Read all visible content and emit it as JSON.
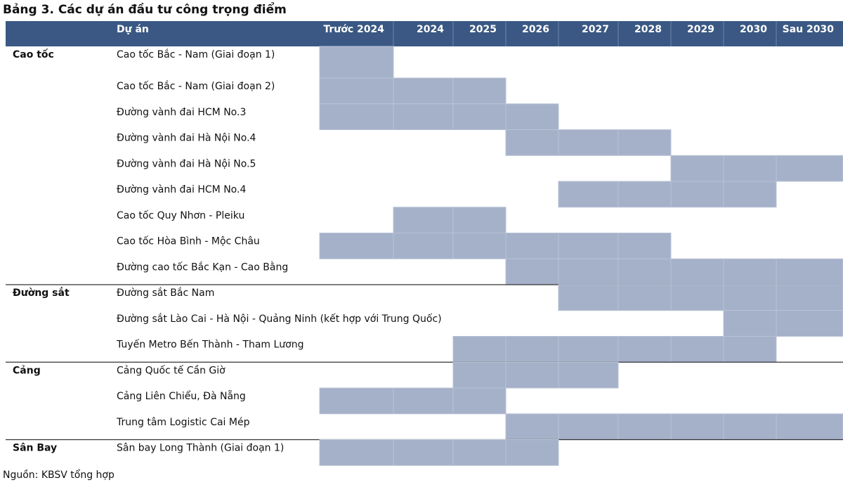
{
  "header": {
    "title": "Bảng 3. Các dự án đầu tư công trọng điểm"
  },
  "table": {
    "columns": [
      "Dự án",
      "Trước 2024",
      "2024",
      "2025",
      "2026",
      "2027",
      "2028",
      "2029",
      "2030",
      "Sau 2030"
    ],
    "groups": [
      {
        "name": "Cao tốc",
        "rows": [
          {
            "name": "Cao tốc Bắc - Nam (Giai đoạn 1)",
            "cells": [
              true,
              false,
              false,
              false,
              false,
              false,
              false,
              false,
              false
            ]
          },
          {
            "name": "Cao tốc Bắc - Nam (Giai đoạn 2)",
            "cells": [
              true,
              true,
              true,
              false,
              false,
              false,
              false,
              false,
              false
            ]
          },
          {
            "name": "Đường vành đai HCM No.3",
            "cells": [
              true,
              true,
              true,
              true,
              false,
              false,
              false,
              false,
              false
            ]
          },
          {
            "name": "Đường vành đai Hà Nội No.4",
            "cells": [
              false,
              false,
              false,
              true,
              true,
              true,
              false,
              false,
              false
            ]
          },
          {
            "name": "Đường vành đai Hà Nội No.5",
            "cells": [
              false,
              false,
              false,
              false,
              false,
              false,
              true,
              true,
              true
            ]
          },
          {
            "name": "Đường vành đai HCM No.4",
            "cells": [
              false,
              false,
              false,
              false,
              true,
              true,
              true,
              true,
              false
            ]
          },
          {
            "name": "Cao tốc Quy Nhơn - Pleiku",
            "cells": [
              false,
              true,
              true,
              false,
              false,
              false,
              false,
              false,
              false
            ]
          },
          {
            "name": "Cao tốc Hòa Bình - Mộc Châu",
            "cells": [
              true,
              true,
              true,
              true,
              true,
              true,
              false,
              false,
              false
            ]
          },
          {
            "name": "Đường cao tốc Bắc Kạn - Cao Bằng",
            "cells": [
              false,
              false,
              false,
              true,
              true,
              true,
              true,
              true,
              true
            ]
          }
        ]
      },
      {
        "name": "Đường sắt",
        "rows": [
          {
            "name": "Đường sắt Bắc Nam",
            "cells": [
              false,
              false,
              false,
              false,
              true,
              true,
              true,
              true,
              true
            ]
          },
          {
            "name": "Đường sắt Lào Cai - Hà Nội - Quảng Ninh (kết hợp với Trung Quốc)",
            "cells": [
              false,
              false,
              false,
              false,
              false,
              false,
              false,
              true,
              true
            ]
          },
          {
            "name": "Tuyến Metro Bến Thành - Tham Lương",
            "cells": [
              false,
              false,
              true,
              true,
              true,
              true,
              true,
              true,
              false
            ]
          }
        ]
      },
      {
        "name": "Cảng",
        "rows": [
          {
            "name": "Cảng Quốc tế Cần Giờ",
            "cells": [
              false,
              false,
              true,
              true,
              true,
              false,
              false,
              false,
              false
            ]
          },
          {
            "name": "Cảng Liên Chiểu, Đà Nẵng",
            "cells": [
              true,
              true,
              true,
              false,
              false,
              false,
              false,
              false,
              false
            ]
          },
          {
            "name": "Trung tâm Logistic Cai Mép",
            "cells": [
              false,
              false,
              false,
              true,
              true,
              true,
              true,
              true,
              true
            ]
          }
        ]
      },
      {
        "name": "Sân Bay",
        "rows": [
          {
            "name": "Sân bay Long Thành (Giai đoạn 1)",
            "cells": [
              true,
              true,
              true,
              true,
              false,
              false,
              false,
              false,
              false
            ]
          }
        ]
      }
    ]
  },
  "footer": {
    "source": "Nguồn: KBSV tổng hợp"
  }
}
